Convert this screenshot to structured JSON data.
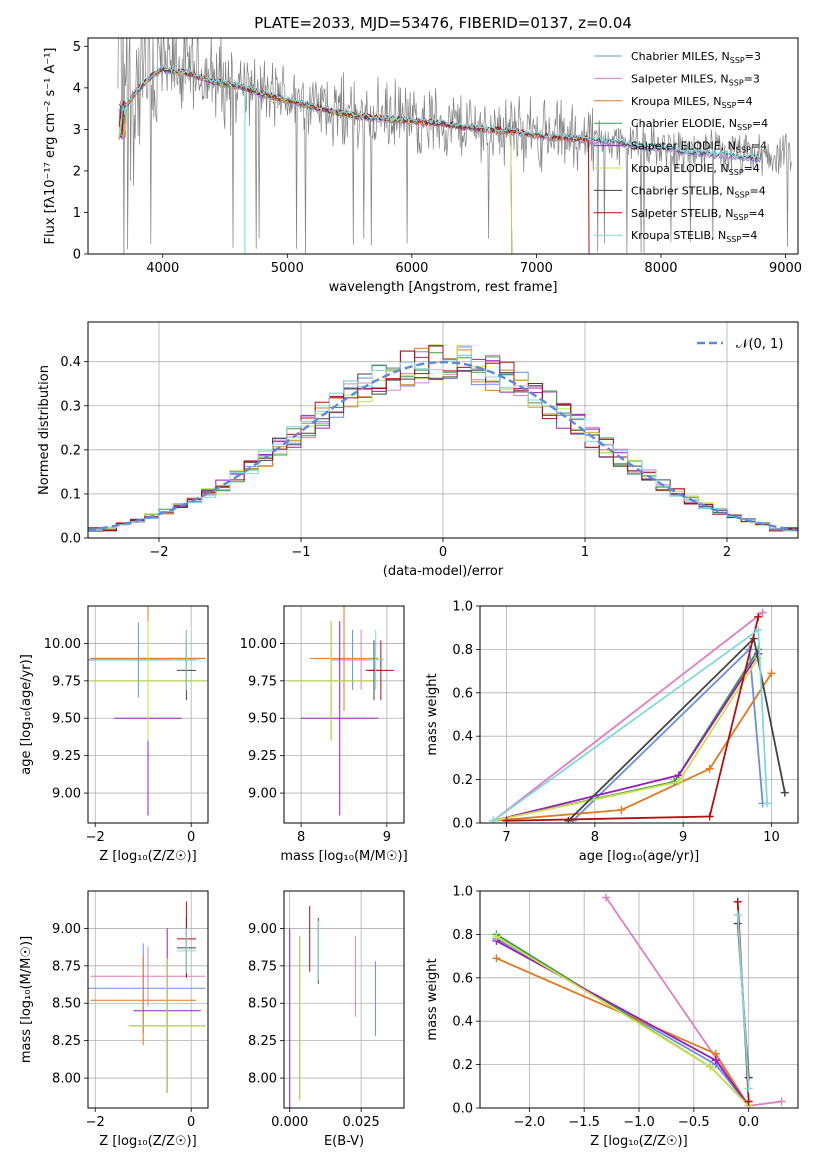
{
  "title": "PLATE=2033, MJD=53476, FIBERID=0137, z=0.04",
  "colors": {
    "chabrier_miles": "#6b8fe0",
    "salpeter_miles": "#e07fc0",
    "kroupa_miles": "#e07a1f",
    "chabrier_elodie": "#3a9a4a",
    "salpeter_elodie": "#9a1fb8",
    "kroupa_elodie": "#c8e04a",
    "chabrier_stelib": "#444444",
    "salpeter_stelib": "#b01010",
    "kroupa_stelib": "#7fd8e0",
    "data": "#808080",
    "normal": "#5a8ae0"
  },
  "chart_data": [
    {
      "type": "line",
      "id": "spectrum",
      "title": "PLATE=2033, MJD=53476, FIBERID=0137, z=0.04",
      "xlabel": "wavelength [Angstrom, rest frame]",
      "ylabel": "Flux [fλ10⁻¹⁷ erg cm⁻² s⁻¹ A⁻¹]",
      "xlim": [
        3400,
        9100
      ],
      "ylim": [
        0,
        5.2
      ],
      "xticks": [
        "4000",
        "5000",
        "6000",
        "7000",
        "8000",
        "9000"
      ],
      "yticks": [
        "0",
        "1",
        "2",
        "3",
        "4",
        "5"
      ],
      "legend": "top-right",
      "series": [
        {
          "name": "Chabrier MILES, N",
          "sub": "SSP",
          "suffix": "=3",
          "key": "chabrier_miles"
        },
        {
          "name": "Salpeter MILES, N",
          "sub": "SSP",
          "suffix": "=3",
          "key": "salpeter_miles"
        },
        {
          "name": "Kroupa MILES, N",
          "sub": "SSP",
          "suffix": "=4",
          "key": "kroupa_miles"
        },
        {
          "name": "Chabrier ELODIE, N",
          "sub": "SSP",
          "suffix": "=4",
          "key": "chabrier_elodie"
        },
        {
          "name": "Salpeter ELODIE, N",
          "sub": "SSP",
          "suffix": "=4",
          "key": "salpeter_elodie"
        },
        {
          "name": "Kroupa ELODIE, N",
          "sub": "SSP",
          "suffix": "=4",
          "key": "kroupa_elodie"
        },
        {
          "name": "Chabrier STELIB, N",
          "sub": "SSP",
          "suffix": "=4",
          "key": "chabrier_stelib"
        },
        {
          "name": "Salpeter STELIB, N",
          "sub": "SSP",
          "suffix": "=4",
          "key": "salpeter_stelib"
        },
        {
          "name": "Kroupa STELIB, N",
          "sub": "SSP",
          "suffix": "=4",
          "key": "kroupa_stelib"
        }
      ],
      "continuum": {
        "x": [
          3650,
          3700,
          3800,
          3900,
          4000,
          4200,
          4400,
          4600,
          4800,
          5000,
          5200,
          5400,
          5600,
          5800,
          6000,
          6200,
          6400,
          6600,
          6800,
          7000,
          7200,
          7400,
          7600,
          7800,
          8000,
          8200,
          8400,
          8600,
          8800
        ],
        "y": [
          3.5,
          3.6,
          4.0,
          4.3,
          4.5,
          4.4,
          4.2,
          4.1,
          3.9,
          3.75,
          3.6,
          3.45,
          3.35,
          3.3,
          3.25,
          3.2,
          3.1,
          3.05,
          3.0,
          2.9,
          2.85,
          2.8,
          2.75,
          2.65,
          2.6,
          2.5,
          2.45,
          2.4,
          2.35
        ]
      }
    },
    {
      "type": "step",
      "id": "residuals",
      "xlabel": "(data-model)/error",
      "ylabel": "Normed distribution",
      "xlim": [
        -2.5,
        2.5
      ],
      "ylim": [
        0,
        0.49
      ],
      "xticks": [
        "−2",
        "−1",
        "0",
        "1",
        "2"
      ],
      "yticks": [
        "0.0",
        "0.1",
        "0.2",
        "0.3",
        "0.4"
      ],
      "legend": "top-right",
      "normal_label": "𝒩(0, 1)",
      "bin_width": 0.1
    },
    {
      "type": "errorbar",
      "id": "age_vs_Z",
      "xlabel": "Z [log₁₀(Z/Z☉)]",
      "ylabel": "age  [log₁₀(age/yr)]",
      "xlim": [
        -2.15,
        0.35
      ],
      "ylim": [
        8.8,
        10.25
      ],
      "xticks": [
        "−2",
        "0"
      ],
      "yticks": [
        "9.00",
        "9.25",
        "9.50",
        "9.75",
        "10.00"
      ],
      "points": [
        {
          "key": "chabrier_miles",
          "x": -1.1,
          "xerr": 1.2,
          "y": 9.89,
          "yerr": 0.25
        },
        {
          "key": "salpeter_miles",
          "x": -0.9,
          "xerr": 1.2,
          "y": 9.9,
          "yerr": 0.2
        },
        {
          "key": "kroupa_miles",
          "x": -0.9,
          "xerr": 1.2,
          "y": 9.9,
          "yerr": 0.35
        },
        {
          "key": "chabrier_elodie",
          "x": -0.9,
          "xerr": 1.2,
          "y": 9.75,
          "yerr": 0.4
        },
        {
          "key": "salpeter_elodie",
          "x": -0.9,
          "xerr": 0.7,
          "y": 9.5,
          "yerr": 0.65
        },
        {
          "key": "kroupa_elodie",
          "x": -0.9,
          "xerr": 1.2,
          "y": 9.75,
          "yerr": 0.4
        },
        {
          "key": "chabrier_stelib",
          "x": -0.1,
          "xerr": 0.2,
          "y": 9.82,
          "yerr": 0.2
        },
        {
          "key": "salpeter_stelib",
          "x": -0.1,
          "xerr": 0.2,
          "y": 9.89,
          "yerr": 0.2
        },
        {
          "key": "kroupa_stelib",
          "x": -0.1,
          "xerr": 0.3,
          "y": 9.89,
          "yerr": 0.2
        }
      ]
    },
    {
      "type": "errorbar",
      "id": "age_vs_mass",
      "xlabel": "mass [log₁₀(M/M☉)]",
      "ylabel": "",
      "xlim": [
        7.8,
        9.2
      ],
      "ylim": [
        8.8,
        10.25
      ],
      "xticks": [
        "8",
        "9"
      ],
      "yticks": [
        "9.00",
        "9.25",
        "9.50",
        "9.75",
        "10.00"
      ],
      "points": [
        {
          "key": "chabrier_miles",
          "x": 8.6,
          "xerr": 0.25,
          "y": 9.89,
          "yerr": 0.2
        },
        {
          "key": "salpeter_miles",
          "x": 8.7,
          "xerr": 0.2,
          "y": 9.89,
          "yerr": 0.2
        },
        {
          "key": "kroupa_miles",
          "x": 8.5,
          "xerr": 0.4,
          "y": 9.9,
          "yerr": 0.35
        },
        {
          "key": "chabrier_elodie",
          "x": 8.35,
          "xerr": 0.5,
          "y": 9.75,
          "yerr": 0.4
        },
        {
          "key": "salpeter_elodie",
          "x": 8.45,
          "xerr": 0.45,
          "y": 9.5,
          "yerr": 0.65
        },
        {
          "key": "kroupa_elodie",
          "x": 8.35,
          "xerr": 0.5,
          "y": 9.75,
          "yerr": 0.4
        },
        {
          "key": "chabrier_stelib",
          "x": 8.85,
          "xerr": 0.1,
          "y": 9.82,
          "yerr": 0.2
        },
        {
          "key": "salpeter_stelib",
          "x": 8.93,
          "xerr": 0.15,
          "y": 9.82,
          "yerr": 0.2
        },
        {
          "key": "kroupa_stelib",
          "x": 8.87,
          "xerr": 0.1,
          "y": 9.89,
          "yerr": 0.2
        }
      ]
    },
    {
      "type": "line",
      "id": "weight_vs_age",
      "xlabel": "age  [log₁₀(age/yr)]",
      "ylabel": "mass weight",
      "xlim": [
        6.7,
        10.3
      ],
      "ylim": [
        0,
        1.0
      ],
      "xticks": [
        "7",
        "8",
        "9",
        "10"
      ],
      "yticks": [
        "0.0",
        "0.2",
        "0.4",
        "0.6",
        "0.8",
        "1.0"
      ],
      "series": [
        {
          "key": "chabrier_miles",
          "x": [
            7.75,
            9.75,
            9.9
          ],
          "y": [
            0.01,
            0.8,
            0.09
          ]
        },
        {
          "key": "salpeter_miles",
          "x": [
            6.85,
            9.9
          ],
          "y": [
            0.01,
            0.97
          ]
        },
        {
          "key": "kroupa_miles",
          "x": [
            6.85,
            8.3,
            9.3,
            10.0
          ],
          "y": [
            0.01,
            0.06,
            0.25,
            0.69
          ]
        },
        {
          "key": "chabrier_elodie",
          "x": [
            6.85,
            8.9,
            9.85
          ],
          "y": [
            0.01,
            0.19,
            0.8
          ]
        },
        {
          "key": "salpeter_elodie",
          "x": [
            6.85,
            8.95,
            9.85
          ],
          "y": [
            0.01,
            0.22,
            0.78
          ]
        },
        {
          "key": "kroupa_elodie",
          "x": [
            6.85,
            8.95,
            9.85
          ],
          "y": [
            0.01,
            0.19,
            0.76
          ]
        },
        {
          "key": "chabrier_stelib",
          "x": [
            7.7,
            9.8,
            10.15
          ],
          "y": [
            0.01,
            0.85,
            0.14
          ]
        },
        {
          "key": "salpeter_stelib",
          "x": [
            7.0,
            9.3,
            9.85
          ],
          "y": [
            0.01,
            0.03,
            0.95
          ]
        },
        {
          "key": "kroupa_stelib",
          "x": [
            6.85,
            9.85,
            9.95
          ],
          "y": [
            0.01,
            0.89,
            0.09
          ]
        }
      ]
    },
    {
      "type": "errorbar",
      "id": "mass_vs_Z",
      "xlabel": "Z [log₁₀(Z/Z☉)]",
      "ylabel": "mass [log₁₀(M/M☉)]",
      "xlim": [
        -2.15,
        0.35
      ],
      "ylim": [
        7.8,
        9.25
      ],
      "xticks": [
        "−2",
        "0"
      ],
      "yticks": [
        "8.00",
        "8.25",
        "8.50",
        "8.75",
        "9.00"
      ],
      "points": [
        {
          "key": "chabrier_miles",
          "x": -1.0,
          "xerr": 1.3,
          "y": 8.6,
          "yerr": 0.3
        },
        {
          "key": "salpeter_miles",
          "x": -0.9,
          "xerr": 1.2,
          "y": 8.68,
          "yerr": 0.2
        },
        {
          "key": "kroupa_miles",
          "x": -1.0,
          "xerr": 1.1,
          "y": 8.52,
          "yerr": 0.3
        },
        {
          "key": "chabrier_elodie",
          "x": -0.5,
          "xerr": 0.8,
          "y": 8.35,
          "yerr": 0.45
        },
        {
          "key": "salpeter_elodie",
          "x": -0.5,
          "xerr": 0.7,
          "y": 8.45,
          "yerr": 0.55
        },
        {
          "key": "kroupa_elodie",
          "x": -0.5,
          "xerr": 0.8,
          "y": 8.35,
          "yerr": 0.45
        },
        {
          "key": "chabrier_stelib",
          "x": -0.1,
          "xerr": 0.2,
          "y": 8.87,
          "yerr": 0.2
        },
        {
          "key": "salpeter_stelib",
          "x": -0.1,
          "xerr": 0.2,
          "y": 8.93,
          "yerr": 0.25
        },
        {
          "key": "kroupa_stelib",
          "x": -0.1,
          "xerr": 0.2,
          "y": 8.85,
          "yerr": 0.15
        }
      ]
    },
    {
      "type": "errorbar",
      "id": "mass_vs_ebv",
      "xlabel": "E(B-V)",
      "ylabel": "",
      "xlim": [
        -0.002,
        0.04
      ],
      "ylim": [
        7.8,
        9.25
      ],
      "xticks": [
        "0.000",
        "0.025"
      ],
      "yticks": [
        "8.00",
        "8.25",
        "8.50",
        "8.75",
        "9.00"
      ],
      "points": [
        {
          "key": "chabrier_miles",
          "x": 0.03,
          "y": 8.53,
          "yerr": 0.25
        },
        {
          "key": "salpeter_miles",
          "x": 0.023,
          "y": 8.68,
          "yerr": 0.27
        },
        {
          "key": "kroupa_miles",
          "x": 0.04,
          "y": 8.53,
          "yerr": 0.32
        },
        {
          "key": "chabrier_elodie",
          "x": 0.0035,
          "y": 8.4,
          "yerr": 0.55
        },
        {
          "key": "salpeter_elodie",
          "x": 0.0,
          "y": 8.4,
          "yerr": 0.6
        },
        {
          "key": "kroupa_elodie",
          "x": 0.0035,
          "y": 8.4,
          "yerr": 0.55
        },
        {
          "key": "chabrier_stelib",
          "x": 0.01,
          "y": 8.85,
          "yerr": 0.22
        },
        {
          "key": "salpeter_stelib",
          "x": 0.007,
          "y": 8.93,
          "yerr": 0.22
        },
        {
          "key": "kroupa_stelib",
          "x": 0.01,
          "y": 8.85,
          "yerr": 0.2
        }
      ]
    },
    {
      "type": "line",
      "id": "weight_vs_Z",
      "xlabel": "Z [log₁₀(Z/Z☉)]",
      "ylabel": "mass weight",
      "xlim": [
        -2.45,
        0.45
      ],
      "ylim": [
        0,
        1.0
      ],
      "xticks": [
        "−2.0",
        "−1.5",
        "−1.0",
        "−0.5",
        "0.0"
      ],
      "yticks": [
        "0.0",
        "0.2",
        "0.4",
        "0.6",
        "0.8",
        "1.0"
      ],
      "series": [
        {
          "key": "chabrier_miles",
          "x": [
            -2.3,
            -0.3,
            0.0
          ],
          "y": [
            0.78,
            0.2,
            0.01
          ]
        },
        {
          "key": "salpeter_miles",
          "x": [
            -1.3,
            0.0,
            0.3
          ],
          "y": [
            0.97,
            0.01,
            0.03
          ]
        },
        {
          "key": "kroupa_miles",
          "x": [
            -2.3,
            -0.3,
            0.0
          ],
          "y": [
            0.69,
            0.25,
            0.01
          ]
        },
        {
          "key": "chabrier_elodie",
          "x": [
            -2.3,
            -0.35,
            0.0
          ],
          "y": [
            0.8,
            0.19,
            0.01
          ]
        },
        {
          "key": "salpeter_elodie",
          "x": [
            -2.3,
            -0.3,
            0.0
          ],
          "y": [
            0.77,
            0.22,
            0.01
          ]
        },
        {
          "key": "kroupa_elodie",
          "x": [
            -2.3,
            -0.35,
            0.0
          ],
          "y": [
            0.79,
            0.19,
            0.01
          ]
        },
        {
          "key": "chabrier_stelib",
          "x": [
            -0.1,
            0.0
          ],
          "y": [
            0.85,
            0.14
          ]
        },
        {
          "key": "salpeter_stelib",
          "x": [
            -0.1,
            0.0
          ],
          "y": [
            0.95,
            0.03
          ]
        },
        {
          "key": "kroupa_stelib",
          "x": [
            -0.1,
            0.0
          ],
          "y": [
            0.89,
            0.09
          ]
        }
      ]
    }
  ]
}
